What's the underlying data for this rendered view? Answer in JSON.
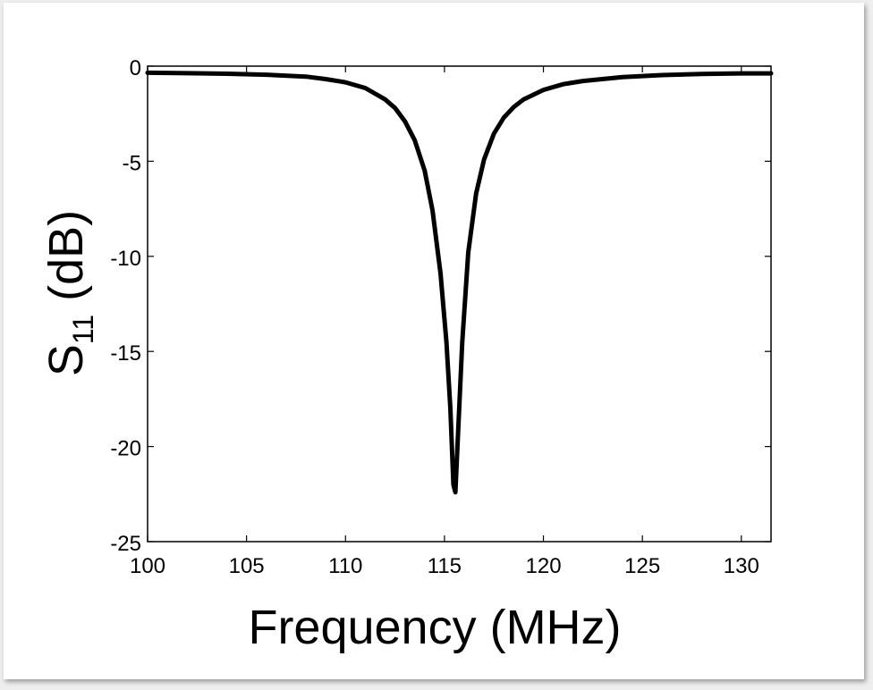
{
  "chart_data": {
    "type": "line",
    "xlabel": "Frequency (MHz)",
    "ylabel_main": "S",
    "ylabel_sub": "11",
    "ylabel_unit": " (dB)",
    "xlim": [
      100,
      130
    ],
    "ylim": [
      -25,
      0
    ],
    "xticks": [
      100,
      105,
      110,
      115,
      120,
      125,
      130
    ],
    "xtick_labels": [
      "100",
      "105",
      "110",
      "115",
      "120",
      "125",
      "130"
    ],
    "yticks": [
      0,
      -5,
      -10,
      -15,
      -20,
      -25
    ],
    "ytick_labels": [
      "0",
      "-5",
      "-10",
      "-15",
      "-20",
      "-25"
    ],
    "grid": false,
    "line_color": "#000000",
    "series": [
      {
        "x": [
          100,
          102,
          104,
          106,
          108,
          109,
          110,
          111,
          112,
          112.5,
          113,
          113.5,
          114,
          114.4,
          114.8,
          115.1,
          115.3,
          115.45,
          115.55,
          115.7,
          115.9,
          116.2,
          116.6,
          117,
          117.5,
          118,
          118.5,
          119,
          120,
          121,
          122,
          124,
          126,
          128,
          130
        ],
        "y": [
          -0.35,
          -0.37,
          -0.4,
          -0.45,
          -0.55,
          -0.68,
          -0.85,
          -1.15,
          -1.75,
          -2.2,
          -2.9,
          -3.9,
          -5.5,
          -7.6,
          -10.9,
          -14.5,
          -18.0,
          -22.0,
          -22.4,
          -19.0,
          -14.5,
          -9.8,
          -6.7,
          -4.9,
          -3.55,
          -2.7,
          -2.15,
          -1.75,
          -1.25,
          -0.95,
          -0.78,
          -0.58,
          -0.47,
          -0.41,
          -0.38
        ]
      }
    ]
  }
}
